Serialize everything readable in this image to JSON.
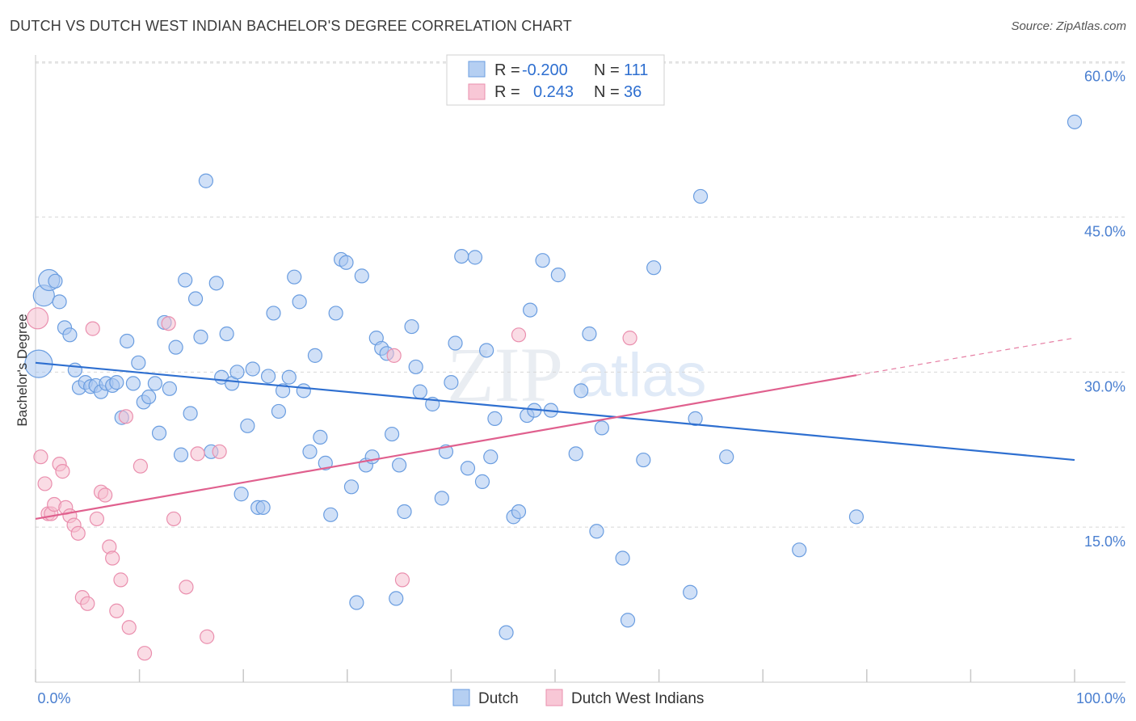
{
  "title": "DUTCH VS DUTCH WEST INDIAN BACHELOR'S DEGREE CORRELATION CHART",
  "source": "Source: ZipAtlas.com",
  "watermark": {
    "zip": "ZIP",
    "atlas": "atlas"
  },
  "colors": {
    "dutch_fill": "#a9c6f0",
    "dutch_stroke": "#6a9de0",
    "dutch_line": "#2e6fd0",
    "dwi_fill": "#f6bfd0",
    "dwi_stroke": "#ea8fae",
    "dwi_line": "#e0608e",
    "tick_text": "#4a7fd0",
    "grid": "#d8d8d8"
  },
  "legend": {
    "rows": [
      {
        "r_label": "R = ",
        "r_value": "-0.200",
        "n_label": "N = ",
        "n_value": "111"
      },
      {
        "r_label": "R = ",
        "r_value": "0.243",
        "n_label": "N = ",
        "n_value": "36"
      }
    ]
  },
  "chart_data": {
    "type": "scatter",
    "title": "DUTCH VS DUTCH WEST INDIAN BACHELOR'S DEGREE CORRELATION CHART",
    "xlabel": "",
    "ylabel": "Bachelor's Degree",
    "xlim": [
      0,
      100
    ],
    "ylim": [
      0,
      62
    ],
    "x_tick_labels": [
      "0.0%",
      "100.0%"
    ],
    "y_ticks": [
      15,
      30,
      45,
      60
    ],
    "y_tick_labels": [
      "15.0%",
      "30.0%",
      "45.0%",
      "60.0%"
    ],
    "grid": true,
    "legend_position": "top-center",
    "series": [
      {
        "name": "Dutch",
        "trend": {
          "x": [
            0,
            100
          ],
          "y": [
            30.9,
            21.5
          ]
        },
        "points": [
          [
            0.3,
            30.8,
            3
          ],
          [
            0.8,
            37.4,
            2
          ],
          [
            1.3,
            38.9,
            2
          ],
          [
            1.9,
            38.8,
            1
          ],
          [
            2.3,
            36.8,
            1
          ],
          [
            2.8,
            34.3,
            1
          ],
          [
            3.3,
            33.6,
            1
          ],
          [
            3.8,
            30.2,
            1
          ],
          [
            4.2,
            28.5,
            1
          ],
          [
            4.8,
            29.0,
            1
          ],
          [
            5.3,
            28.6,
            1
          ],
          [
            5.8,
            28.7,
            1
          ],
          [
            6.3,
            28.1,
            1
          ],
          [
            6.8,
            28.9,
            1
          ],
          [
            7.4,
            28.7,
            1
          ],
          [
            7.8,
            29.0,
            1
          ],
          [
            8.3,
            25.6,
            1
          ],
          [
            8.8,
            33.0,
            1
          ],
          [
            9.4,
            28.9,
            1
          ],
          [
            9.9,
            30.9,
            1
          ],
          [
            10.4,
            27.1,
            1
          ],
          [
            10.9,
            27.6,
            1
          ],
          [
            11.5,
            28.9,
            1
          ],
          [
            11.9,
            24.1,
            1
          ],
          [
            12.4,
            34.8,
            1
          ],
          [
            12.9,
            28.4,
            1
          ],
          [
            13.5,
            32.4,
            1
          ],
          [
            14.0,
            22.0,
            1
          ],
          [
            14.4,
            38.9,
            1
          ],
          [
            14.9,
            26.0,
            1
          ],
          [
            15.4,
            37.1,
            1
          ],
          [
            15.9,
            33.4,
            1
          ],
          [
            16.4,
            48.5,
            1
          ],
          [
            16.9,
            22.3,
            1
          ],
          [
            17.4,
            38.6,
            1
          ],
          [
            17.9,
            29.5,
            1
          ],
          [
            18.4,
            33.7,
            1
          ],
          [
            18.9,
            28.9,
            1
          ],
          [
            19.4,
            30.0,
            1
          ],
          [
            19.8,
            18.2,
            1
          ],
          [
            20.4,
            24.8,
            1
          ],
          [
            20.9,
            30.3,
            1
          ],
          [
            21.4,
            16.9,
            1
          ],
          [
            21.9,
            16.9,
            1
          ],
          [
            22.4,
            29.6,
            1
          ],
          [
            22.9,
            35.7,
            1
          ],
          [
            23.4,
            26.2,
            1
          ],
          [
            23.8,
            28.2,
            1
          ],
          [
            24.4,
            29.5,
            1
          ],
          [
            24.9,
            39.2,
            1
          ],
          [
            25.4,
            36.8,
            1
          ],
          [
            25.8,
            28.2,
            1
          ],
          [
            26.4,
            22.3,
            1
          ],
          [
            26.9,
            31.6,
            1
          ],
          [
            27.4,
            23.7,
            1
          ],
          [
            27.9,
            21.2,
            1
          ],
          [
            28.4,
            16.2,
            1
          ],
          [
            28.9,
            35.7,
            1
          ],
          [
            29.4,
            40.9,
            1
          ],
          [
            29.9,
            40.6,
            1
          ],
          [
            30.4,
            18.9,
            1
          ],
          [
            30.9,
            7.7,
            1
          ],
          [
            31.4,
            39.3,
            1
          ],
          [
            31.8,
            21.0,
            1
          ],
          [
            32.4,
            21.8,
            1
          ],
          [
            32.8,
            33.3,
            1
          ],
          [
            33.3,
            32.3,
            1
          ],
          [
            33.8,
            31.8,
            1
          ],
          [
            34.3,
            24.0,
            1
          ],
          [
            34.7,
            8.1,
            1
          ],
          [
            35.0,
            21.0,
            1
          ],
          [
            35.5,
            16.5,
            1
          ],
          [
            36.2,
            34.4,
            1
          ],
          [
            36.6,
            30.5,
            1
          ],
          [
            37.0,
            28.1,
            1
          ],
          [
            38.2,
            26.9,
            1
          ],
          [
            39.1,
            17.8,
            1
          ],
          [
            39.5,
            22.3,
            1
          ],
          [
            40.0,
            29.0,
            1
          ],
          [
            40.4,
            32.8,
            1
          ],
          [
            41.0,
            41.2,
            1
          ],
          [
            41.6,
            20.7,
            1
          ],
          [
            42.3,
            41.1,
            1
          ],
          [
            43.0,
            19.4,
            1
          ],
          [
            43.4,
            32.1,
            1
          ],
          [
            43.8,
            21.8,
            1
          ],
          [
            44.2,
            25.5,
            1
          ],
          [
            45.3,
            4.8,
            1
          ],
          [
            46.0,
            16.0,
            1
          ],
          [
            46.5,
            16.5,
            1
          ],
          [
            47.3,
            25.8,
            1
          ],
          [
            47.6,
            36.0,
            1
          ],
          [
            48.0,
            26.3,
            1
          ],
          [
            48.8,
            40.8,
            1
          ],
          [
            49.6,
            26.3,
            1
          ],
          [
            50.3,
            39.4,
            1
          ],
          [
            52.0,
            22.1,
            1
          ],
          [
            52.5,
            28.2,
            1
          ],
          [
            53.3,
            33.7,
            1
          ],
          [
            54.0,
            14.6,
            1
          ],
          [
            54.5,
            24.6,
            1
          ],
          [
            56.5,
            12.0,
            1
          ],
          [
            57.0,
            6.0,
            1
          ],
          [
            58.5,
            21.5,
            1
          ],
          [
            59.5,
            40.1,
            1
          ],
          [
            64.0,
            47.0,
            1
          ],
          [
            63.0,
            8.7,
            1
          ],
          [
            63.5,
            25.5,
            1
          ],
          [
            66.5,
            21.8,
            1
          ],
          [
            73.5,
            12.8,
            1
          ],
          [
            79.0,
            16.0,
            1
          ],
          [
            100.0,
            54.2,
            1
          ]
        ]
      },
      {
        "name": "Dutch West Indians",
        "trend": {
          "x": [
            0,
            79
          ],
          "y": [
            15.8,
            29.7
          ]
        },
        "trend_extension": {
          "x": [
            79,
            100
          ],
          "y": [
            29.7,
            33.3
          ]
        },
        "points": [
          [
            0.2,
            35.2,
            2
          ],
          [
            0.5,
            21.8,
            1
          ],
          [
            0.9,
            19.2,
            1
          ],
          [
            1.2,
            16.3,
            1
          ],
          [
            1.5,
            16.3,
            1
          ],
          [
            1.8,
            17.2,
            1
          ],
          [
            2.3,
            21.1,
            1
          ],
          [
            2.6,
            20.4,
            1
          ],
          [
            2.9,
            16.9,
            1
          ],
          [
            3.3,
            16.1,
            1
          ],
          [
            3.7,
            15.2,
            1
          ],
          [
            4.1,
            14.4,
            1
          ],
          [
            4.5,
            8.2,
            1
          ],
          [
            5.0,
            7.6,
            1
          ],
          [
            5.5,
            34.2,
            1
          ],
          [
            5.9,
            15.8,
            1
          ],
          [
            6.3,
            18.4,
            1
          ],
          [
            6.7,
            18.1,
            1
          ],
          [
            7.1,
            13.1,
            1
          ],
          [
            7.4,
            12.0,
            1
          ],
          [
            7.8,
            6.9,
            1
          ],
          [
            8.2,
            9.9,
            1
          ],
          [
            8.7,
            25.7,
            1
          ],
          [
            9.0,
            5.3,
            1
          ],
          [
            10.1,
            20.9,
            1
          ],
          [
            10.5,
            2.8,
            1
          ],
          [
            12.8,
            34.7,
            1
          ],
          [
            13.3,
            15.8,
            1
          ],
          [
            14.5,
            9.2,
            1
          ],
          [
            15.6,
            22.1,
            1
          ],
          [
            16.5,
            4.4,
            1
          ],
          [
            17.7,
            22.3,
            1
          ],
          [
            34.5,
            31.6,
            1
          ],
          [
            35.3,
            9.9,
            1
          ],
          [
            46.5,
            33.6,
            1
          ],
          [
            57.2,
            33.3,
            1
          ]
        ]
      }
    ]
  },
  "bottom_legend": [
    {
      "label": "Dutch"
    },
    {
      "label": "Dutch West Indians"
    }
  ]
}
